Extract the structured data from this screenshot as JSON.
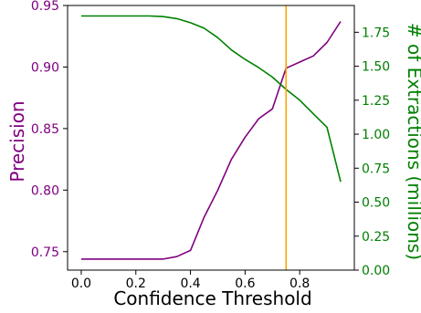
{
  "chart_data": {
    "type": "line",
    "xlabel": "Confidence Threshold",
    "ylabel_left": "Precision",
    "ylabel_right": "# of Extractions (millions)",
    "xlim": [
      -0.05,
      1.0
    ],
    "ylim_left": [
      0.735,
      0.95
    ],
    "ylim_right": [
      0.0,
      1.947
    ],
    "x_ticks": [
      0.0,
      0.2,
      0.4,
      0.6,
      0.8
    ],
    "x_tick_labels": [
      "0.0",
      "0.2",
      "0.4",
      "0.6",
      "0.8"
    ],
    "y_left_ticks": [
      0.75,
      0.8,
      0.85,
      0.9,
      0.95
    ],
    "y_left_tick_labels": [
      "0.75",
      "0.80",
      "0.85",
      "0.90",
      "0.95"
    ],
    "y_right_ticks": [
      0.0,
      0.25,
      0.5,
      0.75,
      1.0,
      1.25,
      1.5,
      1.75
    ],
    "y_right_tick_labels": [
      "0.00",
      "0.25",
      "0.50",
      "0.75",
      "1.00",
      "1.25",
      "1.50",
      "1.75"
    ],
    "grid": false,
    "series": [
      {
        "axis": "left",
        "color": "#800080",
        "x": [
          0.0,
          0.05,
          0.1,
          0.15,
          0.2,
          0.25,
          0.3,
          0.35,
          0.4,
          0.45,
          0.5,
          0.55,
          0.6,
          0.65,
          0.7,
          0.75,
          0.8,
          0.85,
          0.9,
          0.95
        ],
        "values": [
          0.744,
          0.744,
          0.744,
          0.744,
          0.744,
          0.744,
          0.744,
          0.746,
          0.751,
          0.778,
          0.8,
          0.825,
          0.843,
          0.858,
          0.866,
          0.899,
          0.904,
          0.909,
          0.92,
          0.937
        ]
      },
      {
        "axis": "right",
        "color": "#008000",
        "x": [
          0.0,
          0.05,
          0.1,
          0.15,
          0.2,
          0.25,
          0.3,
          0.35,
          0.4,
          0.45,
          0.5,
          0.55,
          0.6,
          0.65,
          0.7,
          0.75,
          0.8,
          0.85,
          0.9,
          0.95
        ],
        "values": [
          1.87,
          1.87,
          1.87,
          1.87,
          1.87,
          1.87,
          1.865,
          1.85,
          1.82,
          1.78,
          1.71,
          1.62,
          1.55,
          1.49,
          1.42,
          1.33,
          1.25,
          1.15,
          1.05,
          0.65
        ]
      }
    ],
    "annotations": [
      {
        "type": "vline",
        "x": 0.75,
        "color": "#ffa500"
      }
    ],
    "colors": {
      "left_axis": "#800080",
      "right_axis": "#008000",
      "threshold_line": "#ffa500"
    }
  }
}
